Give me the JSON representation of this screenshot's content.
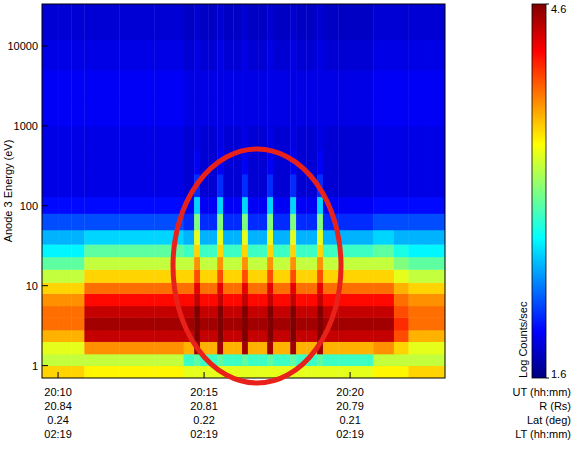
{
  "chart_data": {
    "type": "heatmap",
    "x_label": "UT (hh:mm)",
    "y_label": "Anode 3 Energy (eV)",
    "log": "y",
    "xlim": [
      9.45,
      23.25
    ],
    "xticks": [
      {
        "value": 10,
        "label": "20:10"
      },
      {
        "value": 15,
        "label": "20:15"
      },
      {
        "value": 20,
        "label": "20:20"
      }
    ],
    "ylim": [
      0.7,
      33500
    ],
    "yticks": [
      1,
      10,
      100,
      1000,
      10000
    ],
    "ephemeris": [
      {
        "label": "R (Rs)",
        "values": [
          20.84,
          20.81,
          20.79
        ]
      },
      {
        "label": "Lat (deg)",
        "values": [
          0.24,
          0.22,
          0.21
        ]
      },
      {
        "label": "LT (hh:mm)",
        "values": [
          "02:19",
          "02:19",
          "02:19"
        ]
      }
    ],
    "colorbar": {
      "label": "Log Counts/sec",
      "range": [
        1.6,
        4.6
      ],
      "ticks": [
        1.6,
        4.6
      ]
    },
    "x_edges": [
      9.45,
      10.0,
      10.45,
      10.9,
      11.5,
      12.1,
      12.7,
      13.3,
      13.9,
      14.3,
      14.66,
      14.86,
      15.15,
      15.45,
      15.65,
      16.0,
      16.3,
      16.5,
      16.85,
      17.16,
      17.36,
      17.7,
      17.95,
      18.15,
      18.5,
      18.87,
      19.07,
      19.6,
      20.2,
      20.8,
      21.5,
      22.0,
      22.6,
      23.25
    ],
    "y_edges": [
      0.7,
      1.0,
      1.4,
      2.0,
      2.8,
      4.0,
      5.6,
      8.0,
      11,
      16,
      23,
      33,
      50,
      80,
      130,
      250,
      500,
      1000,
      2000,
      5000,
      12000,
      33500
    ],
    "values": [
      [
        3.6,
        3.6,
        3.6,
        3.5,
        3.5,
        3.5,
        3.5,
        3.5,
        3.5,
        3.4,
        3.4,
        3.4,
        3.4,
        3.4,
        3.4,
        3.4,
        3.4,
        3.4,
        3.4,
        3.4,
        3.4,
        3.4,
        3.4,
        3.4,
        3.4,
        3.4,
        3.4,
        3.4,
        3.4,
        3.5,
        3.5,
        3.6,
        3.6
      ],
      [
        3.3,
        3.3,
        3.3,
        3.3,
        3.3,
        3.3,
        3.3,
        3.3,
        3.3,
        2.9,
        3.0,
        2.9,
        2.9,
        3.0,
        2.9,
        2.9,
        3.0,
        2.9,
        2.9,
        3.0,
        2.9,
        2.9,
        3.0,
        2.9,
        2.9,
        3.0,
        2.9,
        2.9,
        2.9,
        3.3,
        3.3,
        3.3,
        3.3
      ],
      [
        3.4,
        3.4,
        3.4,
        3.8,
        3.8,
        3.8,
        3.8,
        3.8,
        3.8,
        3.7,
        4.5,
        3.7,
        3.7,
        4.5,
        3.7,
        3.7,
        4.5,
        3.7,
        3.7,
        4.5,
        3.7,
        3.7,
        4.5,
        3.7,
        3.7,
        4.5,
        3.7,
        3.7,
        3.7,
        3.8,
        3.6,
        3.4,
        3.4
      ],
      [
        3.7,
        3.7,
        3.7,
        4.4,
        4.4,
        4.4,
        4.4,
        4.4,
        4.4,
        4.4,
        4.6,
        4.4,
        4.4,
        4.6,
        4.4,
        4.4,
        4.6,
        4.4,
        4.4,
        4.6,
        4.4,
        4.4,
        4.6,
        4.4,
        4.4,
        4.6,
        4.4,
        4.4,
        4.4,
        4.4,
        4.0,
        3.7,
        3.7
      ],
      [
        3.9,
        3.9,
        3.9,
        4.5,
        4.5,
        4.5,
        4.5,
        4.5,
        4.5,
        4.5,
        4.6,
        4.5,
        4.5,
        4.6,
        4.5,
        4.5,
        4.6,
        4.5,
        4.5,
        4.6,
        4.5,
        4.5,
        4.6,
        4.5,
        4.5,
        4.6,
        4.5,
        4.5,
        4.5,
        4.5,
        4.1,
        3.9,
        3.9
      ],
      [
        3.9,
        3.9,
        3.9,
        4.4,
        4.4,
        4.4,
        4.4,
        4.4,
        4.4,
        4.4,
        4.6,
        4.4,
        4.4,
        4.6,
        4.4,
        4.4,
        4.6,
        4.4,
        4.4,
        4.6,
        4.4,
        4.4,
        4.6,
        4.4,
        4.4,
        4.6,
        4.4,
        4.4,
        4.4,
        4.4,
        4.0,
        3.9,
        3.9
      ],
      [
        3.8,
        3.8,
        3.8,
        4.2,
        4.2,
        4.2,
        4.2,
        4.2,
        4.2,
        4.2,
        4.4,
        4.2,
        4.2,
        4.4,
        4.2,
        4.2,
        4.4,
        4.2,
        4.2,
        4.4,
        4.2,
        4.2,
        4.4,
        4.2,
        4.2,
        4.4,
        4.2,
        4.2,
        4.2,
        4.2,
        3.9,
        3.8,
        3.8
      ],
      [
        3.6,
        3.6,
        3.6,
        3.9,
        3.9,
        3.9,
        3.9,
        3.9,
        3.9,
        3.9,
        4.3,
        3.9,
        3.9,
        4.3,
        3.9,
        3.9,
        4.3,
        3.9,
        3.9,
        4.3,
        3.9,
        3.9,
        4.3,
        3.9,
        3.9,
        4.3,
        3.9,
        3.9,
        3.9,
        3.9,
        3.7,
        3.6,
        3.6
      ],
      [
        3.3,
        3.3,
        3.3,
        3.6,
        3.6,
        3.6,
        3.6,
        3.6,
        3.6,
        3.6,
        4.0,
        3.6,
        3.6,
        4.0,
        3.6,
        3.6,
        4.0,
        3.6,
        3.6,
        4.0,
        3.6,
        3.6,
        4.0,
        3.6,
        3.6,
        4.0,
        3.6,
        3.6,
        3.6,
        3.6,
        3.4,
        3.3,
        3.3
      ],
      [
        3.0,
        3.0,
        3.0,
        3.3,
        3.3,
        3.3,
        3.3,
        3.3,
        3.3,
        3.3,
        3.8,
        3.3,
        3.3,
        3.8,
        3.3,
        3.3,
        3.8,
        3.3,
        3.3,
        3.8,
        3.3,
        3.3,
        3.8,
        3.3,
        3.3,
        3.8,
        3.3,
        3.3,
        3.3,
        3.3,
        3.1,
        3.0,
        3.0
      ],
      [
        2.7,
        2.7,
        2.7,
        3.0,
        3.0,
        3.0,
        3.0,
        3.0,
        3.0,
        2.9,
        3.6,
        2.9,
        2.9,
        3.6,
        2.9,
        2.9,
        3.6,
        2.9,
        2.9,
        3.6,
        2.9,
        2.9,
        3.6,
        2.9,
        2.9,
        3.6,
        2.9,
        2.9,
        2.9,
        3.0,
        2.8,
        2.7,
        2.7
      ],
      [
        2.5,
        2.5,
        2.5,
        2.6,
        2.6,
        2.6,
        2.6,
        2.6,
        2.6,
        2.5,
        3.4,
        2.5,
        2.5,
        3.4,
        2.5,
        2.5,
        3.4,
        2.5,
        2.5,
        3.4,
        2.5,
        2.5,
        3.4,
        2.5,
        2.5,
        3.4,
        2.5,
        2.5,
        2.5,
        2.6,
        2.5,
        2.5,
        2.5
      ],
      [
        2.2,
        2.2,
        2.2,
        2.2,
        2.2,
        2.2,
        2.2,
        2.2,
        2.2,
        2.1,
        3.1,
        2.1,
        2.1,
        3.1,
        2.1,
        2.1,
        3.1,
        2.1,
        2.1,
        3.1,
        2.1,
        2.1,
        3.1,
        2.1,
        2.1,
        3.1,
        2.1,
        2.1,
        2.1,
        2.2,
        2.2,
        2.2,
        2.2
      ],
      [
        2.0,
        2.0,
        2.0,
        2.0,
        2.0,
        2.0,
        2.0,
        2.0,
        2.0,
        1.95,
        2.6,
        1.95,
        1.95,
        2.6,
        1.95,
        1.95,
        2.6,
        1.95,
        1.95,
        2.6,
        1.95,
        1.95,
        2.6,
        1.95,
        1.95,
        2.6,
        1.95,
        1.95,
        1.95,
        2.0,
        2.0,
        2.0,
        2.0
      ],
      [
        1.9,
        1.9,
        1.9,
        1.9,
        1.9,
        1.9,
        1.9,
        1.9,
        1.9,
        1.85,
        2.1,
        1.85,
        1.85,
        2.1,
        1.85,
        1.85,
        2.1,
        1.85,
        1.85,
        2.1,
        1.85,
        1.85,
        2.1,
        1.85,
        1.85,
        2.1,
        1.85,
        1.85,
        1.85,
        1.9,
        1.9,
        1.9,
        1.9
      ],
      [
        1.9,
        1.9,
        1.9,
        1.9,
        1.9,
        1.9,
        1.9,
        1.9,
        1.9,
        1.85,
        1.95,
        1.85,
        1.85,
        1.95,
        1.85,
        1.85,
        1.95,
        1.85,
        1.85,
        1.95,
        1.85,
        1.85,
        1.95,
        1.85,
        1.85,
        1.95,
        1.85,
        1.85,
        1.85,
        1.9,
        1.9,
        1.9,
        1.9
      ],
      [
        1.9,
        1.9,
        1.9,
        1.9,
        1.9,
        1.9,
        1.9,
        1.9,
        1.9,
        1.85,
        1.9,
        1.85,
        1.85,
        1.9,
        1.85,
        1.85,
        1.9,
        1.85,
        1.85,
        1.9,
        1.85,
        1.85,
        1.9,
        1.85,
        1.85,
        1.9,
        1.85,
        1.85,
        1.85,
        1.9,
        1.9,
        1.9,
        1.9
      ],
      [
        1.95,
        1.95,
        1.95,
        1.95,
        1.95,
        1.95,
        1.95,
        1.95,
        1.95,
        1.9,
        1.9,
        1.9,
        1.9,
        1.9,
        1.9,
        1.9,
        1.9,
        1.9,
        1.9,
        1.9,
        1.9,
        1.9,
        1.9,
        1.9,
        1.9,
        1.9,
        1.9,
        1.9,
        1.9,
        1.95,
        1.95,
        1.95,
        1.95
      ],
      [
        1.95,
        1.95,
        1.95,
        1.95,
        1.95,
        1.95,
        1.95,
        1.95,
        1.95,
        1.9,
        1.9,
        1.9,
        1.9,
        1.9,
        1.9,
        1.9,
        1.9,
        1.9,
        1.9,
        1.9,
        1.9,
        1.9,
        1.9,
        1.9,
        1.9,
        1.9,
        1.9,
        1.9,
        1.9,
        1.95,
        1.95,
        1.95,
        1.95
      ],
      [
        1.9,
        1.9,
        1.9,
        1.9,
        1.9,
        1.9,
        1.9,
        1.9,
        1.9,
        1.85,
        1.9,
        1.85,
        1.85,
        1.9,
        1.85,
        1.85,
        1.9,
        1.85,
        1.85,
        1.9,
        1.85,
        1.85,
        1.9,
        1.85,
        1.85,
        1.9,
        1.85,
        1.85,
        1.85,
        1.9,
        1.9,
        1.9,
        1.9
      ],
      [
        1.85,
        1.85,
        1.85,
        1.85,
        1.85,
        1.85,
        1.85,
        1.85,
        1.85,
        1.8,
        1.85,
        1.8,
        1.8,
        1.85,
        1.8,
        1.8,
        1.85,
        1.8,
        1.8,
        1.85,
        1.8,
        1.8,
        1.85,
        1.8,
        1.8,
        1.85,
        1.8,
        1.8,
        1.8,
        1.85,
        1.85,
        1.85,
        1.85
      ]
    ]
  }
}
